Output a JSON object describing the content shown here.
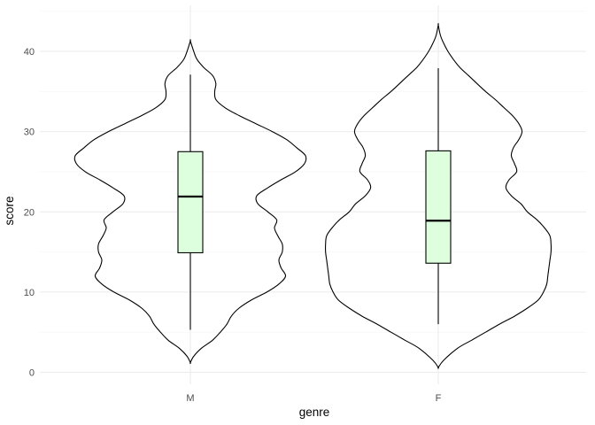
{
  "chart_data": {
    "type": "violin",
    "title": "",
    "xlabel": "genre",
    "ylabel": "score",
    "categories": [
      "M",
      "F"
    ],
    "ylim": [
      0,
      43
    ],
    "yticks": [
      0,
      10,
      20,
      30,
      40
    ],
    "grid": true,
    "legend": "none",
    "colors": {
      "box_fill": "#DDFFDD",
      "outline": "#000000",
      "grid_major": "#EBEBEB",
      "grid_minor": "#F5F5F5"
    },
    "groups": [
      {
        "name": "M",
        "range": [
          1.2,
          41.3
        ],
        "box": {
          "whisker_low": 5.3,
          "q1": 14.9,
          "median": 21.9,
          "q3": 27.5,
          "whisker_high": 37.1
        },
        "density_profile": [
          [
            1.2,
            0.0
          ],
          [
            2.0,
            0.03
          ],
          [
            3.0,
            0.1
          ],
          [
            4.0,
            0.2
          ],
          [
            5.0,
            0.27
          ],
          [
            6.0,
            0.33
          ],
          [
            7.0,
            0.37
          ],
          [
            8.0,
            0.44
          ],
          [
            9.0,
            0.55
          ],
          [
            10.0,
            0.69
          ],
          [
            11.0,
            0.8
          ],
          [
            12.0,
            0.86
          ],
          [
            13.0,
            0.82
          ],
          [
            14.0,
            0.8
          ],
          [
            15.0,
            0.83
          ],
          [
            16.0,
            0.83
          ],
          [
            17.0,
            0.79
          ],
          [
            18.0,
            0.76
          ],
          [
            19.0,
            0.78
          ],
          [
            20.0,
            0.7
          ],
          [
            21.0,
            0.61
          ],
          [
            22.0,
            0.6
          ],
          [
            23.0,
            0.7
          ],
          [
            24.0,
            0.82
          ],
          [
            25.0,
            0.95
          ],
          [
            26.0,
            1.03
          ],
          [
            27.0,
            1.04
          ],
          [
            28.0,
            0.96
          ],
          [
            29.0,
            0.87
          ],
          [
            30.0,
            0.74
          ],
          [
            31.0,
            0.59
          ],
          [
            32.0,
            0.44
          ],
          [
            33.0,
            0.31
          ],
          [
            34.0,
            0.23
          ],
          [
            35.0,
            0.22
          ],
          [
            36.0,
            0.23
          ],
          [
            37.0,
            0.2
          ],
          [
            38.0,
            0.12
          ],
          [
            39.0,
            0.06
          ],
          [
            40.0,
            0.03
          ],
          [
            41.3,
            0.0
          ]
        ]
      },
      {
        "name": "F",
        "range": [
          0.6,
          43.3
        ],
        "box": {
          "whisker_low": 6.0,
          "q1": 13.6,
          "median": 18.9,
          "q3": 27.6,
          "whisker_high": 37.9
        },
        "density_profile": [
          [
            0.6,
            0.0
          ],
          [
            1.5,
            0.05
          ],
          [
            3.0,
            0.18
          ],
          [
            4.0,
            0.31
          ],
          [
            5.0,
            0.44
          ],
          [
            6.0,
            0.57
          ],
          [
            7.0,
            0.71
          ],
          [
            8.0,
            0.83
          ],
          [
            9.0,
            0.93
          ],
          [
            10.0,
            0.98
          ],
          [
            11.0,
            1.01
          ],
          [
            12.0,
            1.02
          ],
          [
            13.0,
            1.03
          ],
          [
            14.0,
            1.04
          ],
          [
            15.0,
            1.05
          ],
          [
            16.0,
            1.05
          ],
          [
            17.0,
            1.04
          ],
          [
            18.0,
            0.99
          ],
          [
            19.0,
            0.92
          ],
          [
            20.0,
            0.83
          ],
          [
            21.0,
            0.77
          ],
          [
            22.0,
            0.68
          ],
          [
            23.0,
            0.63
          ],
          [
            24.0,
            0.66
          ],
          [
            25.0,
            0.73
          ],
          [
            26.0,
            0.71
          ],
          [
            27.0,
            0.68
          ],
          [
            28.0,
            0.7
          ],
          [
            29.0,
            0.75
          ],
          [
            30.0,
            0.78
          ],
          [
            31.0,
            0.75
          ],
          [
            32.0,
            0.69
          ],
          [
            33.0,
            0.61
          ],
          [
            34.0,
            0.53
          ],
          [
            35.0,
            0.44
          ],
          [
            36.0,
            0.36
          ],
          [
            37.0,
            0.28
          ],
          [
            38.0,
            0.2
          ],
          [
            39.0,
            0.14
          ],
          [
            40.0,
            0.09
          ],
          [
            41.0,
            0.05
          ],
          [
            42.0,
            0.02
          ],
          [
            43.3,
            0.0
          ]
        ]
      }
    ]
  }
}
